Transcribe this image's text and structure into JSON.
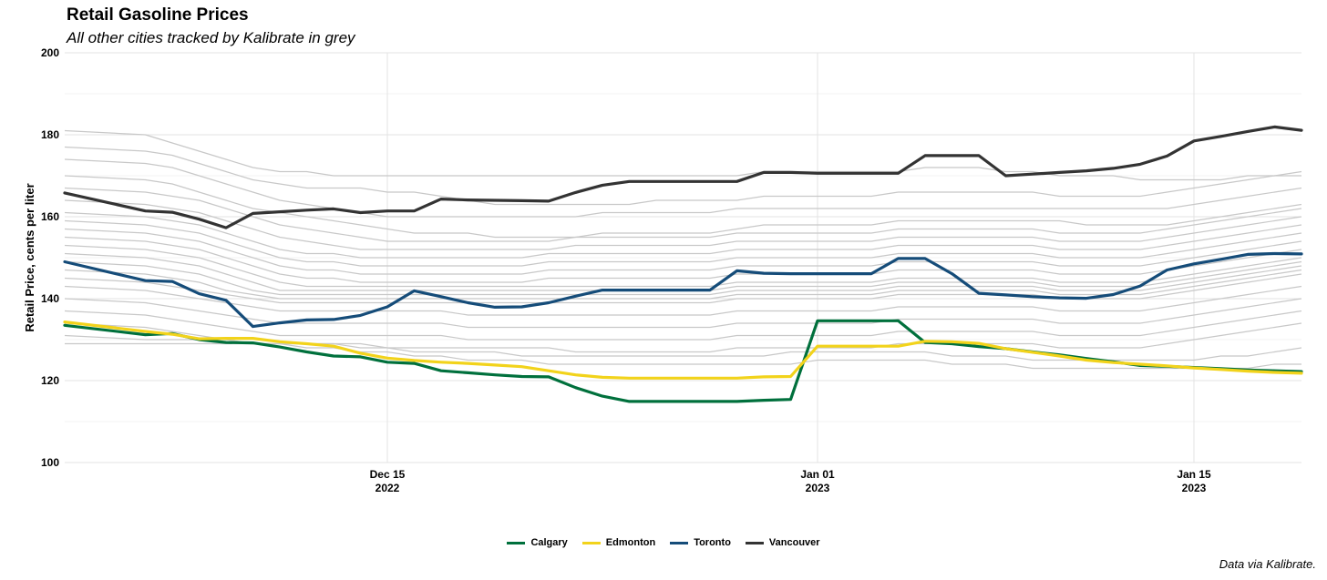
{
  "chart_data": {
    "type": "line",
    "title": "Retail Gasoline Prices",
    "subtitle": "All other cities tracked by Kalibrate in grey",
    "ylabel": "Retail Price, cents per liter",
    "xlabel": "",
    "caption": "Data via Kalibrate.",
    "ylim": [
      100,
      200
    ],
    "yticks": [
      100,
      120,
      140,
      160,
      180,
      200
    ],
    "x_range_days": [
      0,
      46
    ],
    "xtick_labels": [
      {
        "day": 12,
        "label": "Dec 15",
        "sublabel": "2022"
      },
      {
        "day": 28,
        "label": "Jan 01",
        "sublabel": "2023"
      },
      {
        "day": 42,
        "label": "Jan 15",
        "sublabel": "2023"
      }
    ],
    "grid": "on",
    "legend_position": "bottom",
    "x_days": [
      0,
      3,
      4,
      5,
      6,
      7,
      8,
      9,
      10,
      11,
      12,
      13,
      14,
      15,
      16,
      17,
      18,
      19,
      20,
      21,
      22,
      23,
      24,
      25,
      26,
      27,
      28,
      29,
      30,
      31,
      32,
      33,
      34,
      35,
      36,
      37,
      38,
      39,
      40,
      41,
      42,
      43,
      44,
      45,
      46
    ],
    "series": [
      {
        "name": "Calgary",
        "color": "#00703C",
        "values": [
          133.5,
          131.2,
          131.5,
          130,
          129.3,
          129.2,
          128.2,
          127,
          126,
          125.8,
          124.5,
          124.2,
          122.4,
          121.9,
          121.4,
          121,
          120.9,
          118.3,
          116.2,
          114.9,
          114.9,
          114.9,
          114.9,
          114.9,
          115.2,
          115.4,
          134.6,
          134.6,
          134.6,
          134.6,
          129.3,
          129,
          128.3,
          127.8,
          127,
          126.3,
          125.4,
          124.6,
          123.7,
          123.5,
          123.2,
          122.9,
          122.6,
          122.4,
          122.2
        ]
      },
      {
        "name": "Edmonton",
        "color": "#F2D31B",
        "values": [
          134.3,
          132,
          131.3,
          130.2,
          130.3,
          130.3,
          129.5,
          129,
          128.4,
          126.7,
          125.5,
          124.9,
          124.5,
          124.2,
          123.8,
          123.4,
          122.4,
          121.4,
          120.8,
          120.6,
          120.6,
          120.6,
          120.6,
          120.6,
          120.9,
          121,
          128.4,
          128.4,
          128.4,
          128.4,
          129.6,
          129.5,
          129.1,
          127.8,
          126.9,
          126,
          125,
          124.4,
          124,
          123.6,
          123.1,
          122.7,
          122.3,
          122,
          121.8
        ]
      },
      {
        "name": "Toronto",
        "color": "#154C79",
        "values": [
          149,
          144.4,
          144.2,
          141.2,
          139.6,
          133.2,
          134.1,
          134.8,
          134.9,
          135.9,
          138,
          141.9,
          140.5,
          139,
          137.9,
          138,
          139,
          140.6,
          142.1,
          142.1,
          142.1,
          142.1,
          142.1,
          146.8,
          146.2,
          146.1,
          146.1,
          146.1,
          146.1,
          149.8,
          149.8,
          146.1,
          141.3,
          140.9,
          140.5,
          140.2,
          140.1,
          141,
          143.1,
          147,
          148.5,
          149.6,
          150.8,
          151,
          150.9
        ]
      },
      {
        "name": "Vancouver",
        "color": "#333333",
        "values": [
          165.8,
          161.4,
          161.1,
          159.4,
          157.3,
          160.8,
          161.2,
          161.6,
          161.9,
          161,
          161.4,
          161.4,
          164.3,
          164.1,
          164,
          163.9,
          163.8,
          165.9,
          167.7,
          168.6,
          168.6,
          168.6,
          168.6,
          168.6,
          170.8,
          170.8,
          170.6,
          170.6,
          170.6,
          170.6,
          174.9,
          174.9,
          174.9,
          170,
          170.4,
          170.8,
          171.2,
          171.8,
          172.8,
          174.8,
          178.5,
          179.6,
          180.8,
          181.9,
          181.1
        ]
      }
    ],
    "grey_series": [
      [
        181,
        180,
        178,
        176,
        174,
        172,
        171,
        171,
        170,
        170,
        170,
        170,
        170,
        170,
        170,
        170,
        170,
        170,
        170,
        170,
        170,
        170,
        170,
        170,
        171,
        171,
        171,
        171,
        171,
        171,
        172,
        172,
        172,
        171,
        171,
        170,
        170,
        170,
        169,
        169,
        169,
        169,
        170,
        170,
        170
      ],
      [
        177,
        176,
        175,
        173,
        171,
        169,
        168,
        167,
        167,
        167,
        166,
        166,
        165,
        164,
        163,
        163,
        163,
        163,
        163,
        163,
        164,
        164,
        164,
        164,
        165,
        165,
        165,
        165,
        165,
        166,
        166,
        166,
        166,
        166,
        166,
        165,
        165,
        165,
        165,
        166,
        167,
        168,
        169,
        170,
        171
      ],
      [
        174,
        173,
        172,
        170,
        168,
        166,
        164,
        163,
        162,
        161,
        160,
        160,
        160,
        160,
        160,
        160,
        160,
        160,
        161,
        161,
        161,
        161,
        161,
        162,
        162,
        162,
        162,
        162,
        162,
        162,
        162,
        162,
        162,
        162,
        162,
        162,
        162,
        162,
        162,
        162,
        163,
        164,
        165,
        166,
        167
      ],
      [
        170,
        169,
        168,
        166,
        164,
        162,
        161,
        160,
        159,
        158,
        157,
        156,
        156,
        156,
        155,
        155,
        155,
        155,
        156,
        156,
        156,
        156,
        156,
        157,
        158,
        158,
        158,
        158,
        158,
        159,
        159,
        159,
        159,
        159,
        159,
        159,
        158,
        158,
        158,
        158,
        159,
        160,
        161,
        162,
        163
      ],
      [
        167,
        166,
        165,
        164,
        162,
        160,
        158,
        157,
        156,
        155,
        154,
        154,
        154,
        154,
        154,
        154,
        154,
        155,
        155,
        155,
        155,
        155,
        155,
        156,
        156,
        156,
        156,
        156,
        156,
        157,
        157,
        157,
        157,
        157,
        157,
        156,
        156,
        156,
        156,
        157,
        158,
        159,
        160,
        161,
        162
      ],
      [
        164,
        163,
        162,
        161,
        159,
        157,
        155,
        154,
        153,
        152,
        152,
        152,
        152,
        152,
        152,
        152,
        152,
        153,
        153,
        153,
        153,
        153,
        153,
        154,
        154,
        154,
        154,
        154,
        154,
        155,
        155,
        155,
        155,
        155,
        155,
        154,
        154,
        154,
        154,
        155,
        156,
        157,
        158,
        159,
        160
      ],
      [
        161,
        160,
        159,
        158,
        156,
        154,
        152,
        151,
        151,
        150,
        150,
        150,
        150,
        150,
        150,
        150,
        151,
        151,
        151,
        151,
        151,
        151,
        151,
        152,
        152,
        152,
        152,
        152,
        152,
        153,
        153,
        153,
        153,
        153,
        153,
        152,
        152,
        152,
        152,
        153,
        154,
        155,
        156,
        157,
        158
      ],
      [
        159,
        158,
        157,
        156,
        154,
        152,
        150,
        149,
        149,
        148,
        148,
        148,
        148,
        148,
        148,
        148,
        149,
        149,
        149,
        149,
        149,
        149,
        149,
        150,
        150,
        150,
        150,
        150,
        150,
        151,
        151,
        151,
        151,
        151,
        151,
        150,
        150,
        150,
        150,
        151,
        152,
        153,
        154,
        155,
        156
      ],
      [
        157,
        156,
        155,
        154,
        152,
        150,
        148,
        147,
        147,
        146,
        146,
        146,
        146,
        146,
        146,
        146,
        147,
        147,
        147,
        147,
        147,
        147,
        147,
        148,
        148,
        148,
        148,
        148,
        148,
        149,
        149,
        149,
        149,
        149,
        149,
        148,
        148,
        148,
        148,
        149,
        150,
        151,
        152,
        153,
        154
      ],
      [
        155,
        154,
        153,
        152,
        150,
        148,
        146,
        145,
        145,
        144,
        144,
        144,
        144,
        144,
        144,
        144,
        145,
        145,
        145,
        145,
        145,
        145,
        145,
        146,
        146,
        146,
        146,
        146,
        146,
        147,
        147,
        147,
        147,
        147,
        147,
        146,
        146,
        146,
        146,
        147,
        148,
        149,
        150,
        151,
        152
      ],
      [
        153,
        152,
        151,
        150,
        148,
        146,
        144,
        143,
        143,
        143,
        143,
        143,
        143,
        143,
        143,
        143,
        143,
        143,
        143,
        143,
        143,
        143,
        143,
        144,
        144,
        144,
        144,
        144,
        144,
        145,
        145,
        145,
        145,
        145,
        145,
        144,
        144,
        144,
        144,
        145,
        146,
        147,
        148,
        149,
        150
      ],
      [
        151,
        150,
        149,
        148,
        146,
        144,
        142,
        142,
        142,
        142,
        142,
        142,
        142,
        142,
        142,
        142,
        142,
        142,
        142,
        142,
        142,
        142,
        142,
        143,
        143,
        143,
        143,
        143,
        143,
        144,
        144,
        144,
        144,
        144,
        144,
        143,
        143,
        143,
        143,
        144,
        145,
        146,
        147,
        148,
        149
      ],
      [
        149,
        148,
        147,
        146,
        144,
        142,
        141,
        141,
        141,
        141,
        141,
        141,
        141,
        141,
        141,
        141,
        141,
        141,
        141,
        141,
        141,
        141,
        141,
        142,
        142,
        142,
        142,
        142,
        142,
        143,
        143,
        143,
        143,
        143,
        143,
        142,
        142,
        142,
        142,
        143,
        144,
        145,
        146,
        147,
        148
      ],
      [
        147,
        146,
        145,
        144,
        142,
        141,
        140,
        140,
        140,
        140,
        140,
        140,
        140,
        140,
        140,
        140,
        140,
        140,
        140,
        140,
        140,
        140,
        140,
        141,
        141,
        141,
        141,
        141,
        141,
        142,
        142,
        142,
        142,
        142,
        142,
        141,
        141,
        141,
        141,
        142,
        143,
        144,
        145,
        146,
        147
      ],
      [
        145,
        144,
        143,
        142,
        141,
        140,
        139,
        139,
        139,
        139,
        139,
        139,
        139,
        139,
        139,
        139,
        139,
        139,
        139,
        139,
        139,
        139,
        139,
        140,
        140,
        140,
        140,
        140,
        140,
        141,
        141,
        141,
        141,
        141,
        141,
        140,
        140,
        140,
        140,
        141,
        142,
        143,
        144,
        145,
        146
      ],
      [
        143,
        142,
        141,
        140,
        139,
        138,
        137,
        137,
        137,
        137,
        137,
        137,
        137,
        136,
        136,
        136,
        136,
        136,
        136,
        136,
        136,
        136,
        136,
        137,
        137,
        137,
        137,
        137,
        137,
        138,
        138,
        138,
        138,
        138,
        138,
        137,
        137,
        137,
        137,
        138,
        139,
        140,
        141,
        142,
        143
      ],
      [
        140,
        139,
        138,
        137,
        136,
        135,
        134,
        134,
        134,
        134,
        134,
        134,
        134,
        133,
        133,
        133,
        133,
        133,
        133,
        133,
        133,
        133,
        133,
        134,
        134,
        134,
        134,
        134,
        134,
        135,
        135,
        135,
        135,
        135,
        135,
        134,
        134,
        134,
        134,
        135,
        136,
        137,
        138,
        139,
        140
      ],
      [
        137,
        136,
        135,
        134,
        133,
        132,
        131,
        131,
        131,
        131,
        131,
        131,
        131,
        130,
        130,
        130,
        130,
        130,
        130,
        130,
        130,
        130,
        130,
        131,
        131,
        131,
        131,
        131,
        131,
        132,
        132,
        132,
        132,
        132,
        132,
        131,
        131,
        131,
        131,
        132,
        133,
        134,
        135,
        136,
        137
      ],
      [
        134,
        133,
        132,
        131,
        130,
        129,
        129,
        129,
        129,
        129,
        128,
        128,
        128,
        128,
        128,
        128,
        128,
        127,
        127,
        127,
        127,
        127,
        127,
        128,
        128,
        128,
        128,
        128,
        128,
        129,
        129,
        129,
        129,
        129,
        129,
        128,
        128,
        128,
        128,
        129,
        130,
        131,
        132,
        133,
        134
      ],
      [
        131,
        130,
        130,
        130,
        130,
        129,
        129,
        129,
        129,
        128,
        128,
        127,
        127,
        127,
        127,
        126,
        126,
        126,
        126,
        126,
        126,
        126,
        126,
        126,
        126,
        127,
        127,
        127,
        127,
        127,
        127,
        126,
        126,
        126,
        125,
        125,
        125,
        125,
        125,
        125,
        125,
        126,
        126,
        127,
        128
      ],
      [
        129,
        129,
        129,
        129,
        129,
        129,
        129,
        128,
        128,
        127,
        127,
        126,
        126,
        125,
        125,
        125,
        124,
        124,
        124,
        124,
        124,
        124,
        124,
        124,
        124,
        124,
        125,
        125,
        125,
        125,
        125,
        124,
        124,
        124,
        123,
        123,
        123,
        123,
        123,
        123,
        123,
        123,
        123,
        124,
        124
      ]
    ]
  }
}
